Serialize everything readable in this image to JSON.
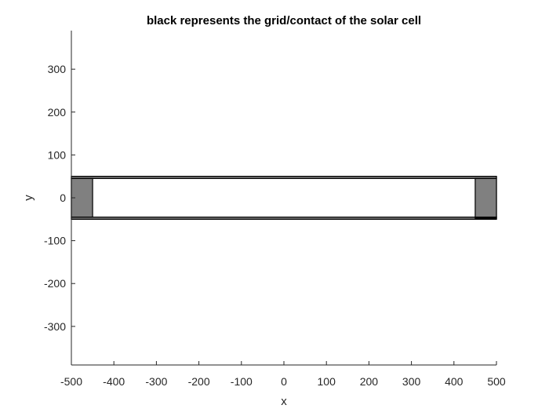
{
  "chart_data": {
    "type": "diagram",
    "title": "black represents the grid/contact of the solar cell",
    "xlabel": "x",
    "ylabel": "y",
    "xlim": [
      -500,
      500
    ],
    "ylim": [
      -390,
      390
    ],
    "xticks": [
      -500,
      -400,
      -300,
      -200,
      -100,
      0,
      100,
      200,
      300,
      400,
      500
    ],
    "yticks": [
      -300,
      -200,
      -100,
      0,
      100,
      200,
      300
    ],
    "grid": false,
    "colors": {
      "axis": "#262626",
      "contact_fill": "#808080",
      "outline": "#000000",
      "background": "#ffffff"
    },
    "shapes": [
      {
        "name": "cell-outline",
        "x0": -500,
        "x1": 500,
        "y0": -50,
        "y1": 50,
        "fill": "none"
      },
      {
        "name": "top-grid-line",
        "x0": -500,
        "x1": 500,
        "y0": 45,
        "y1": 50,
        "fill": "#808080"
      },
      {
        "name": "bottom-grid-line",
        "x0": -500,
        "x1": 500,
        "y0": -50,
        "y1": -45,
        "fill": "#808080"
      },
      {
        "name": "left-contact",
        "x0": -500,
        "x1": -450,
        "y0": -45,
        "y1": 45,
        "fill": "#808080"
      },
      {
        "name": "right-contact",
        "x0": 450,
        "x1": 500,
        "y0": -45,
        "y1": 45,
        "fill": "#808080"
      },
      {
        "name": "right-bottom-mark",
        "x0": 450,
        "x1": 500,
        "y0": -48,
        "y1": -45,
        "fill": "#000000"
      }
    ]
  }
}
